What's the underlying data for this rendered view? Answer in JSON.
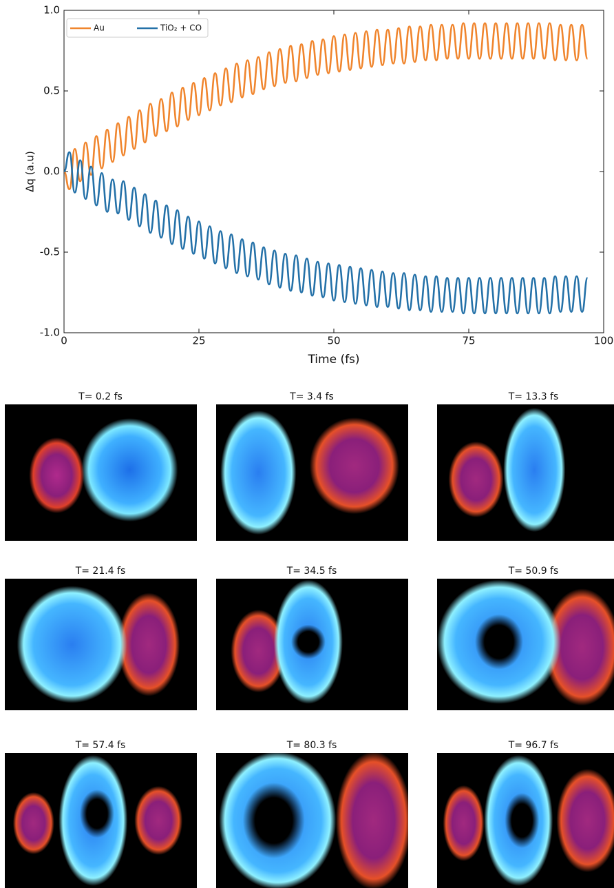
{
  "chart_data": {
    "type": "line",
    "ylabel": "Δq (a.u)",
    "xlabel": "Time (fs)",
    "x": [
      0,
      1,
      2,
      3,
      4,
      5,
      6,
      7,
      8,
      9,
      10,
      11,
      12,
      13,
      14,
      15,
      16,
      17,
      18,
      19,
      20,
      21,
      22,
      23,
      24,
      25,
      26,
      27,
      28,
      29,
      30,
      31,
      32,
      33,
      34,
      35,
      36,
      37,
      38,
      39,
      40,
      41,
      42,
      43,
      44,
      45,
      46,
      47,
      48,
      49,
      50,
      51,
      52,
      53,
      54,
      55,
      56,
      57,
      58,
      59,
      60,
      61,
      62,
      63,
      64,
      65,
      66,
      67,
      68,
      69,
      70,
      71,
      72,
      73,
      74,
      75,
      76,
      77,
      78,
      79,
      80,
      81,
      82,
      83,
      84,
      85,
      86,
      87,
      88,
      89,
      90,
      91,
      92,
      93,
      94,
      95,
      96,
      97
    ],
    "series": [
      {
        "name": "Au",
        "color": "#f0852d",
        "values": [
          0,
          -0.11,
          0.14,
          -0.06,
          0.18,
          -0.02,
          0.22,
          0.02,
          0.26,
          0.06,
          0.3,
          0.1,
          0.34,
          0.14,
          0.38,
          0.18,
          0.42,
          0.22,
          0.45,
          0.25,
          0.49,
          0.28,
          0.52,
          0.32,
          0.55,
          0.35,
          0.58,
          0.38,
          0.61,
          0.41,
          0.64,
          0.43,
          0.67,
          0.46,
          0.69,
          0.48,
          0.71,
          0.51,
          0.74,
          0.53,
          0.76,
          0.55,
          0.78,
          0.56,
          0.79,
          0.58,
          0.81,
          0.6,
          0.82,
          0.61,
          0.84,
          0.62,
          0.85,
          0.63,
          0.86,
          0.64,
          0.87,
          0.65,
          0.88,
          0.66,
          0.88,
          0.67,
          0.89,
          0.67,
          0.9,
          0.68,
          0.9,
          0.69,
          0.91,
          0.69,
          0.91,
          0.7,
          0.91,
          0.7,
          0.92,
          0.7,
          0.92,
          0.7,
          0.92,
          0.7,
          0.92,
          0.7,
          0.92,
          0.7,
          0.92,
          0.7,
          0.92,
          0.7,
          0.92,
          0.7,
          0.92,
          0.69,
          0.91,
          0.69,
          0.91,
          0.69,
          0.91,
          0.7
        ]
      },
      {
        "name": "TiO₂ + CO",
        "color": "#2471a8",
        "values": [
          0,
          0.12,
          -0.13,
          0.07,
          -0.17,
          0.03,
          -0.21,
          -0.01,
          -0.25,
          -0.05,
          -0.26,
          -0.06,
          -0.3,
          -0.1,
          -0.34,
          -0.14,
          -0.38,
          -0.18,
          -0.41,
          -0.21,
          -0.45,
          -0.24,
          -0.48,
          -0.28,
          -0.51,
          -0.31,
          -0.54,
          -0.34,
          -0.57,
          -0.37,
          -0.6,
          -0.39,
          -0.63,
          -0.42,
          -0.65,
          -0.44,
          -0.67,
          -0.47,
          -0.7,
          -0.49,
          -0.72,
          -0.51,
          -0.74,
          -0.52,
          -0.75,
          -0.54,
          -0.77,
          -0.56,
          -0.78,
          -0.57,
          -0.8,
          -0.58,
          -0.81,
          -0.59,
          -0.82,
          -0.6,
          -0.83,
          -0.61,
          -0.84,
          -0.62,
          -0.84,
          -0.63,
          -0.85,
          -0.63,
          -0.86,
          -0.64,
          -0.86,
          -0.65,
          -0.87,
          -0.65,
          -0.87,
          -0.66,
          -0.87,
          -0.66,
          -0.88,
          -0.66,
          -0.88,
          -0.66,
          -0.88,
          -0.66,
          -0.88,
          -0.66,
          -0.88,
          -0.66,
          -0.88,
          -0.66,
          -0.88,
          -0.66,
          -0.88,
          -0.66,
          -0.88,
          -0.65,
          -0.87,
          -0.65,
          -0.87,
          -0.65,
          -0.87,
          -0.66
        ]
      }
    ],
    "xlim": [
      0,
      100
    ],
    "xticks": [
      0,
      25,
      50,
      75,
      100
    ],
    "ylim": [
      -1,
      1
    ],
    "yticks": [
      {
        "value": -1,
        "label": "-1.0"
      },
      -0.5,
      {
        "value": 0,
        "label": "0.0"
      },
      0.5,
      {
        "value": 1,
        "label": "1.0"
      }
    ],
    "legend": "upper left",
    "grid": false
  },
  "panels": [
    {
      "title": "T= 0.2 fs"
    },
    {
      "title": "T= 3.4 fs"
    },
    {
      "title": "T= 13.3 fs"
    },
    {
      "title": "T= 21.4 fs"
    },
    {
      "title": "T= 34.5 fs"
    },
    {
      "title": "T= 50.9 fs"
    },
    {
      "title": "T= 57.4 fs"
    },
    {
      "title": "T= 80.3 fs"
    },
    {
      "title": "T= 96.7 fs"
    }
  ]
}
